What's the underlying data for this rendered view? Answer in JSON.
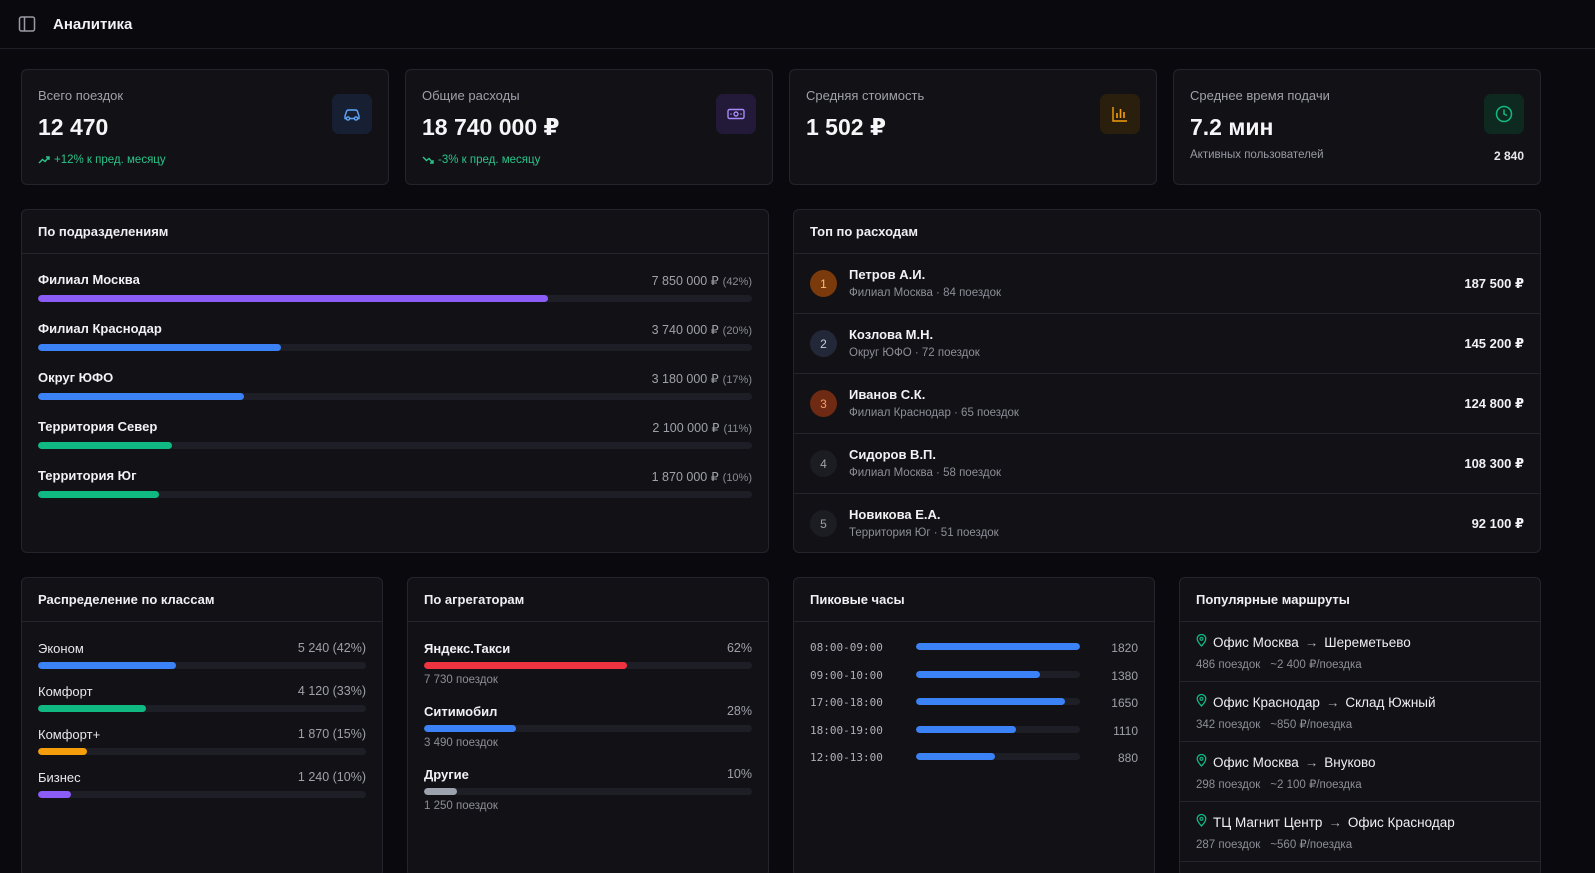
{
  "header": {
    "title": "Аналитика",
    "sidebar_icon": "sidebar-toggle-icon"
  },
  "colors": {
    "purple": "#8b5cf6",
    "blue": "#3b82f6",
    "green": "#10b981",
    "orange": "#f59e0b",
    "red": "#ef3340",
    "gray": "#9ca3af",
    "accent_positive": "#2bc48a"
  },
  "kpis": [
    {
      "label": "Всего поездок",
      "value": "12 470",
      "delta": "+12% к пред. месяцу",
      "icon": "car-icon"
    },
    {
      "label": "Общие расходы",
      "value": "18 740 000 ₽",
      "delta": "-3% к пред. месяцу",
      "icon": "banknote-icon"
    },
    {
      "label": "Средняя стоимость",
      "value": "1 502 ₽",
      "icon": "bar-chart-icon"
    },
    {
      "label": "Среднее время подачи",
      "value": "7.2 мин",
      "sub_label": "Активных пользователей",
      "sub_value": "2 840",
      "icon": "clock-icon"
    }
  ],
  "departments": {
    "title": "По подразделениям",
    "items": [
      {
        "name": "Филиал Москва",
        "amount": "7 850 000 ₽",
        "pct": "(42%)",
        "share": 0.42,
        "color": "#8b5cf6"
      },
      {
        "name": "Филиал Краснодар",
        "amount": "3 740 000 ₽",
        "pct": "(20%)",
        "share": 0.2,
        "color": "#3b82f6"
      },
      {
        "name": "Округ ЮФО",
        "amount": "3 180 000 ₽",
        "pct": "(17%)",
        "share": 0.17,
        "color": "#3b82f6"
      },
      {
        "name": "Территория Север",
        "amount": "2 100 000 ₽",
        "pct": "(11%)",
        "share": 0.11,
        "color": "#10b981"
      },
      {
        "name": "Территория Юг",
        "amount": "1 870 000 ₽",
        "pct": "(10%)",
        "share": 0.1,
        "color": "#10b981"
      }
    ]
  },
  "top_spenders": {
    "title": "Топ по расходам",
    "items": [
      {
        "rank": "1",
        "name": "Петров А.И.",
        "meta": "Филиал Москва · 84 поездок",
        "sum": "187 500 ₽",
        "badge_bg": "#7a3a0c",
        "badge_fg": "#fbbf72"
      },
      {
        "rank": "2",
        "name": "Козлова М.Н.",
        "meta": "Округ ЮФО · 72 поездок",
        "sum": "145 200 ₽",
        "badge_bg": "#232838",
        "badge_fg": "#c8ccd6"
      },
      {
        "rank": "3",
        "name": "Иванов С.К.",
        "meta": "Филиал Краснодар · 65 поездок",
        "sum": "124 800 ₽",
        "badge_bg": "#6e2a12",
        "badge_fg": "#f59e6c"
      },
      {
        "rank": "4",
        "name": "Сидоров В.П.",
        "meta": "Филиал Москва · 58 поездок",
        "sum": "108 300 ₽",
        "badge_bg": "#1c1c23",
        "badge_fg": "#a0a0aa"
      },
      {
        "rank": "5",
        "name": "Новикова Е.А.",
        "meta": "Территория Юг · 51 поездок",
        "sum": "92 100 ₽",
        "badge_bg": "#1c1c23",
        "badge_fg": "#a0a0aa"
      }
    ]
  },
  "classes": {
    "title": "Распределение по классам",
    "items": [
      {
        "name": "Эконом",
        "amount": "5 240 (42%)",
        "share": 0.42,
        "color": "#3b82f6"
      },
      {
        "name": "Комфорт",
        "amount": "4 120 (33%)",
        "share": 0.33,
        "color": "#10b981"
      },
      {
        "name": "Комфорт+",
        "amount": "1 870 (15%)",
        "share": 0.15,
        "color": "#f59e0b"
      },
      {
        "name": "Бизнес",
        "amount": "1 240 (10%)",
        "share": 0.1,
        "color": "#8b5cf6"
      }
    ]
  },
  "aggregators": {
    "title": "По агрегаторам",
    "items": [
      {
        "name": "Яндекс.Такси",
        "pct": "62%",
        "trips": "7 730 поездок",
        "share": 0.62,
        "color": "#ef3340"
      },
      {
        "name": "Ситимобил",
        "pct": "28%",
        "trips": "3 490 поездок",
        "share": 0.28,
        "color": "#3b82f6"
      },
      {
        "name": "Другие",
        "pct": "10%",
        "trips": "1 250 поездок",
        "share": 0.1,
        "color": "#9ca3af"
      }
    ]
  },
  "peak_hours": {
    "title": "Пиковые часы",
    "max": 1820,
    "items": [
      {
        "time": "08:00-09:00",
        "count": "1820",
        "value": 1820
      },
      {
        "time": "09:00-10:00",
        "count": "1380",
        "value": 1380
      },
      {
        "time": "17:00-18:00",
        "count": "1650",
        "value": 1650
      },
      {
        "time": "18:00-19:00",
        "count": "1110",
        "value": 1110
      },
      {
        "time": "12:00-13:00",
        "count": "880",
        "value": 880
      }
    ]
  },
  "routes": {
    "title": "Популярные маршруты",
    "arrow": "→",
    "items": [
      {
        "from": "Офис Москва",
        "to": "Шереметьево",
        "trips": "486 поездок",
        "avg": "~2 400 ₽/поездка"
      },
      {
        "from": "Офис Краснодар",
        "to": "Склад Южный",
        "trips": "342 поездок",
        "avg": "~850 ₽/поездка"
      },
      {
        "from": "Офис Москва",
        "to": "Внуково",
        "trips": "298 поездок",
        "avg": "~2 100 ₽/поездка"
      },
      {
        "from": "ТЦ Магнит Центр",
        "to": "Офис Краснодар",
        "trips": "287 поездок",
        "avg": "~560 ₽/поездка"
      }
    ]
  }
}
